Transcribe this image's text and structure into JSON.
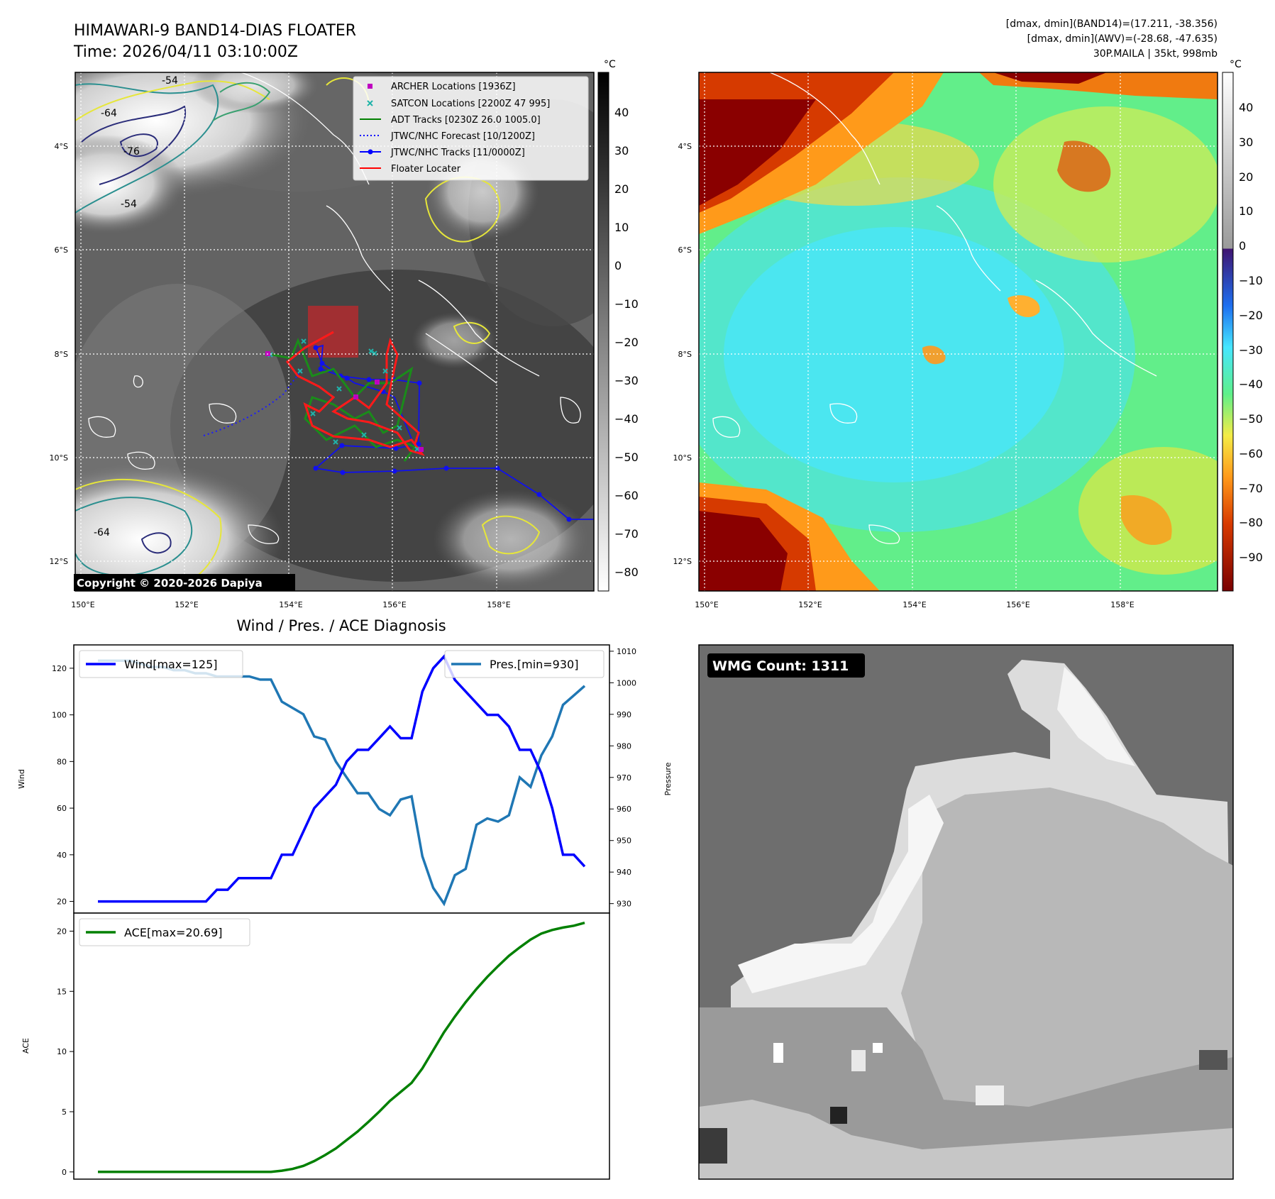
{
  "header": {
    "title_line1": "HIMAWARI-9 BAND14-DIAS FLOATER",
    "title_line2": "Time: 2026/04/11 03:10:00Z",
    "dmax_band14": "[dmax, dmin](BAND14)=(17.211, -38.356)",
    "dmax_awv": "[dmax, dmin](AWV)=(-28.68, -47.635)",
    "storm_info": "30P.MAILA | 35kt, 998mb"
  },
  "copyright": "Copyright © 2020-2026 Dapiya",
  "map": {
    "lat_labels": [
      "4°S",
      "6°S",
      "8°S",
      "10°S",
      "12°S"
    ],
    "lon_labels": [
      "150°E",
      "152°E",
      "154°E",
      "156°E",
      "158°E"
    ],
    "contour_labels": [
      "-54",
      "-64",
      "-76",
      "-54",
      "-64"
    ],
    "legend": [
      {
        "label": "ARCHER Locations [1936Z]",
        "color": "#c000c0",
        "kind": "square"
      },
      {
        "label": "SATCON Locations [2200Z 47 995]",
        "color": "#20b2aa",
        "kind": "x"
      },
      {
        "label": "ADT Tracks [0230Z 26.0 1005.0]",
        "color": "#008000",
        "kind": "line"
      },
      {
        "label": "JTWC/NHC Forecast [10/1200Z]",
        "color": "#0000ff",
        "kind": "dotted"
      },
      {
        "label": "JTWC/NHC Tracks [11/0000Z]",
        "color": "#0000ff",
        "kind": "dotline"
      },
      {
        "label": "Floater Locater",
        "color": "#ff0000",
        "kind": "line"
      }
    ]
  },
  "colorbar_left": {
    "unit": "°C",
    "ticks": [
      "40",
      "30",
      "20",
      "10",
      "0",
      "−10",
      "−20",
      "−30",
      "−40",
      "−50",
      "−60",
      "−70",
      "−80"
    ]
  },
  "colorbar_right": {
    "unit": "°C",
    "ticks": [
      "40",
      "30",
      "20",
      "10",
      "0",
      "−10",
      "−20",
      "−30",
      "−40",
      "−50",
      "−60",
      "−70",
      "−80",
      "−90"
    ]
  },
  "diag": {
    "title": "Wind / Pres. / ACE Diagnosis",
    "wind_label": "Wind",
    "pressure_label": "Pressure",
    "ace_label": "ACE",
    "wind_legend": "Wind[max=125]",
    "pres_legend": "Pres.[min=930]",
    "ace_legend": "ACE[max=20.69]",
    "wind_ticks": [
      "20",
      "40",
      "60",
      "80",
      "100",
      "120"
    ],
    "pres_ticks": [
      "930",
      "940",
      "950",
      "960",
      "970",
      "980",
      "990",
      "1000",
      "1010"
    ],
    "ace_ticks": [
      "0",
      "5",
      "10",
      "15",
      "20"
    ]
  },
  "wmg": {
    "label": "WMG Count: 1311"
  },
  "chart_data": [
    {
      "type": "line",
      "title": "Wind / Pres. / ACE Diagnosis",
      "ylabel": "Wind",
      "ylim": [
        15,
        130
      ],
      "y2label": "Pressure",
      "y2lim": [
        927,
        1012
      ],
      "series": [
        {
          "name": "Wind[max=125]",
          "axis": "left",
          "color": "#0000ff",
          "values": [
            20,
            20,
            20,
            20,
            20,
            20,
            20,
            20,
            20,
            20,
            20,
            25,
            25,
            30,
            30,
            30,
            30,
            40,
            40,
            50,
            60,
            65,
            70,
            80,
            85,
            85,
            90,
            95,
            90,
            90,
            110,
            120,
            125,
            115,
            110,
            105,
            100,
            100,
            95,
            85,
            85,
            75,
            60,
            40,
            40,
            35
          ]
        },
        {
          "name": "Pres.[min=930]",
          "axis": "right",
          "color": "#1f77b4",
          "values": [
            1007,
            1007,
            1007,
            1007,
            1006,
            1005,
            1005,
            1004,
            1004,
            1003,
            1003,
            1002,
            1002,
            1002,
            1002,
            1001,
            1001,
            994,
            992,
            990,
            983,
            982,
            975,
            970,
            965,
            965,
            960,
            958,
            963,
            964,
            945,
            935,
            930,
            939,
            941,
            955,
            957,
            956,
            958,
            970,
            967,
            977,
            983,
            993,
            996,
            999
          ]
        }
      ]
    },
    {
      "type": "line",
      "ylabel": "ACE",
      "ylim": [
        -0.6,
        21.5
      ],
      "series": [
        {
          "name": "ACE[max=20.69]",
          "color": "#008000",
          "values": [
            0,
            0,
            0,
            0,
            0,
            0,
            0,
            0,
            0,
            0,
            0,
            0,
            0,
            0,
            0,
            0,
            0,
            0.1,
            0.25,
            0.5,
            0.9,
            1.4,
            1.95,
            2.65,
            3.35,
            4.15,
            5.0,
            5.9,
            6.65,
            7.4,
            8.6,
            10.1,
            11.6,
            12.9,
            14.1,
            15.2,
            16.2,
            17.1,
            17.95,
            18.65,
            19.3,
            19.8,
            20.1,
            20.3,
            20.45,
            20.69
          ]
        }
      ]
    }
  ]
}
